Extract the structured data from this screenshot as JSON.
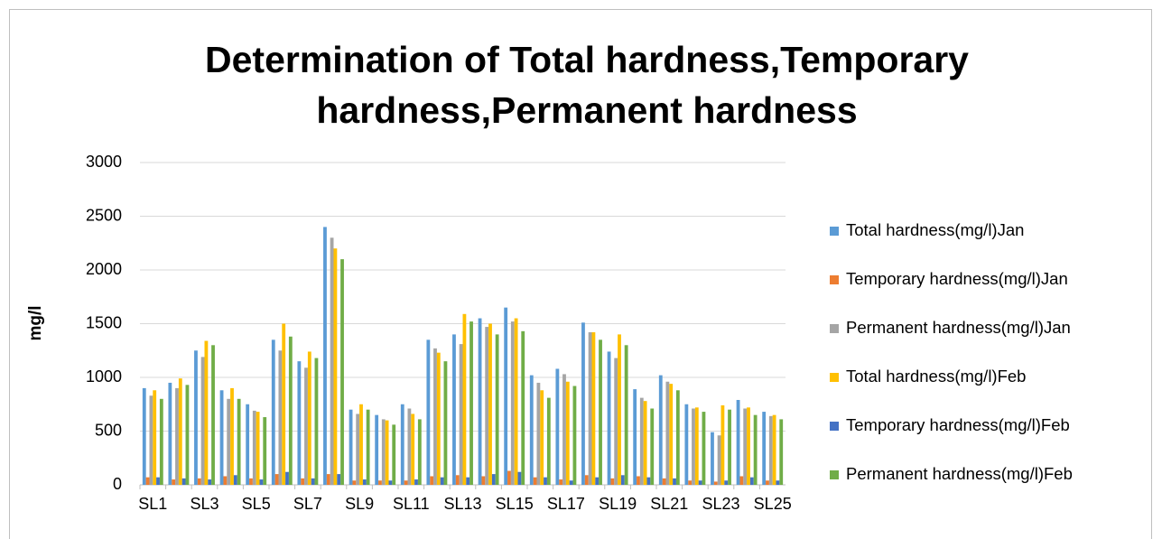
{
  "chart_data": {
    "type": "bar",
    "title": "Determination of Total hardness,Temporary hardness,Permanent hardness",
    "y_label": "mg/l",
    "categories": [
      "SL1",
      null,
      "SL3",
      null,
      "SL5",
      null,
      "SL7",
      null,
      "SL9",
      null,
      "SL11",
      null,
      "SL13",
      null,
      "SL15",
      null,
      "SL17",
      null,
      "SL19",
      null,
      "SL21",
      null,
      "SL23",
      null,
      "SL25"
    ],
    "series": [
      {
        "name": "Total hardness(mg/l)Jan",
        "color": "#5b9bd5",
        "values": [
          900,
          950,
          1250,
          880,
          750,
          1350,
          1150,
          2400,
          700,
          650,
          750,
          1350,
          1400,
          1550,
          1650,
          1020,
          1080,
          1510,
          1240,
          890,
          1020,
          750,
          490,
          790,
          680
        ]
      },
      {
        "name": "Temporary hardness(mg/l)Jan",
        "color": "#ed7d31",
        "values": [
          70,
          50,
          60,
          80,
          60,
          100,
          60,
          100,
          40,
          40,
          40,
          80,
          90,
          80,
          130,
          70,
          50,
          90,
          60,
          80,
          60,
          40,
          30,
          80,
          40
        ]
      },
      {
        "name": "Permanent hardness(mg/l)Jan",
        "color": "#a5a5a5",
        "values": [
          830,
          900,
          1190,
          800,
          690,
          1250,
          1090,
          2300,
          660,
          610,
          710,
          1270,
          1310,
          1470,
          1520,
          950,
          1030,
          1420,
          1180,
          810,
          960,
          710,
          460,
          710,
          640
        ]
      },
      {
        "name": "Total hardness(mg/l)Feb",
        "color": "#ffc000",
        "values": [
          880,
          990,
          1340,
          900,
          680,
          1500,
          1240,
          2200,
          750,
          600,
          660,
          1230,
          1590,
          1500,
          1550,
          880,
          960,
          1420,
          1400,
          780,
          940,
          720,
          740,
          720,
          650
        ]
      },
      {
        "name": "Temporary hardness(mg/l)Feb",
        "color": "#4472c4",
        "values": [
          70,
          60,
          50,
          90,
          50,
          120,
          60,
          100,
          50,
          40,
          50,
          70,
          70,
          100,
          120,
          70,
          40,
          70,
          90,
          70,
          60,
          40,
          40,
          70,
          40
        ]
      },
      {
        "name": "Permanent hardness(mg/l)Feb",
        "color": "#70ad47",
        "values": [
          800,
          930,
          1300,
          800,
          630,
          1380,
          1180,
          2100,
          700,
          560,
          610,
          1150,
          1520,
          1400,
          1430,
          810,
          920,
          1350,
          1300,
          710,
          880,
          680,
          700,
          650,
          610
        ]
      }
    ],
    "ylim": [
      0,
      3000
    ],
    "yticks": [
      0,
      500,
      1000,
      1500,
      2000,
      2500,
      3000
    ],
    "grid": true,
    "legend": "right"
  }
}
